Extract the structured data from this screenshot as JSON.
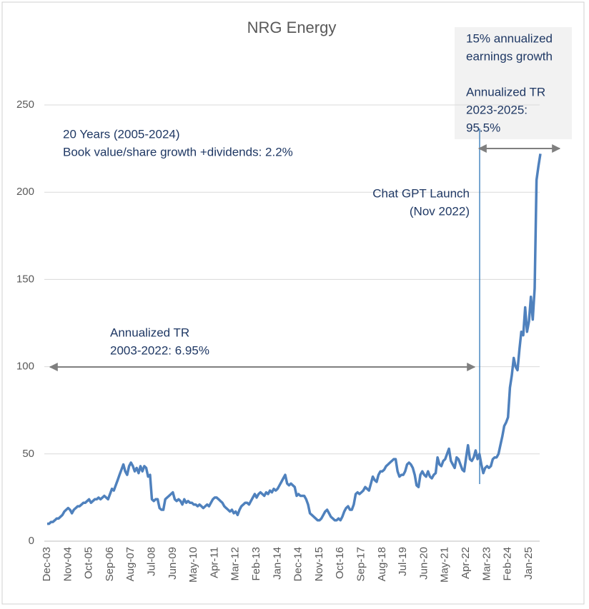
{
  "chart_data": {
    "type": "line",
    "title": "NRG Energy",
    "categories": [
      "Dec-03",
      null,
      null,
      null,
      null,
      null,
      null,
      null,
      null,
      null,
      null,
      "Nov-04",
      null,
      null,
      null,
      null,
      null,
      null,
      null,
      null,
      null,
      null,
      "Oct-05",
      null,
      null,
      null,
      null,
      null,
      null,
      null,
      null,
      null,
      null,
      "Sep-06",
      null,
      null,
      null,
      null,
      null,
      null,
      null,
      null,
      null,
      null,
      "Aug-07",
      null,
      null,
      null,
      null,
      null,
      null,
      null,
      null,
      null,
      null,
      "Jul-08",
      null,
      null,
      null,
      null,
      null,
      null,
      null,
      null,
      null,
      null,
      "Jun-09",
      null,
      null,
      null,
      null,
      null,
      null,
      null,
      null,
      null,
      null,
      "May-10",
      null,
      null,
      null,
      null,
      null,
      null,
      null,
      null,
      null,
      null,
      "Apr-11",
      null,
      null,
      null,
      null,
      null,
      null,
      null,
      null,
      null,
      null,
      "Mar-12",
      null,
      null,
      null,
      null,
      null,
      null,
      null,
      null,
      null,
      null,
      "Feb-13",
      null,
      null,
      null,
      null,
      null,
      null,
      null,
      null,
      null,
      null,
      "Jan-14",
      null,
      null,
      null,
      null,
      null,
      null,
      null,
      null,
      null,
      null,
      "Dec-14",
      null,
      null,
      null,
      null,
      null,
      null,
      null,
      null,
      null,
      null,
      "Nov-15",
      null,
      null,
      null,
      null,
      null,
      null,
      null,
      null,
      null,
      null,
      "Oct-16",
      null,
      null,
      null,
      null,
      null,
      null,
      null,
      null,
      null,
      null,
      "Sep-17",
      null,
      null,
      null,
      null,
      null,
      null,
      null,
      null,
      null,
      null,
      "Aug-18",
      null,
      null,
      null,
      null,
      null,
      null,
      null,
      null,
      null,
      null,
      "Jul-19",
      null,
      null,
      null,
      null,
      null,
      null,
      null,
      null,
      null,
      null,
      "Jun-20",
      null,
      null,
      null,
      null,
      null,
      null,
      null,
      null,
      null,
      null,
      "May-21",
      null,
      null,
      null,
      null,
      null,
      null,
      null,
      null,
      null,
      null,
      "Apr-22",
      null,
      null,
      null,
      null,
      null,
      null,
      null,
      null,
      null,
      null,
      "Mar-23",
      null,
      null,
      null,
      null,
      null,
      null,
      null,
      null,
      null,
      null,
      "Feb-24",
      null,
      null,
      null,
      null,
      null,
      null,
      null,
      null,
      null,
      null,
      "Jan-25",
      null,
      null,
      null,
      null,
      null,
      null
    ],
    "series": [
      {
        "color": "#4f81bd",
        "values": [
          10,
          10,
          11,
          11,
          12,
          13,
          13,
          14,
          15,
          17,
          18,
          19,
          18,
          16,
          18,
          19,
          20,
          20,
          21,
          22,
          22,
          23,
          24,
          22,
          23,
          24,
          24,
          25,
          24,
          25,
          26,
          25,
          24,
          27,
          30,
          29,
          32,
          35,
          38,
          41,
          44,
          40,
          38,
          43,
          45,
          43,
          40,
          42,
          39,
          43,
          40,
          43,
          42,
          37,
          38,
          24,
          23,
          24,
          24,
          19,
          18,
          18,
          24,
          25,
          26,
          27,
          28,
          24,
          23,
          24,
          23,
          21,
          24,
          22,
          23,
          22,
          22,
          21,
          21,
          20,
          21,
          20,
          19,
          20,
          21,
          20,
          22,
          24,
          25,
          25,
          24,
          23,
          22,
          20,
          19,
          18,
          17,
          18,
          16,
          17,
          15,
          18,
          20,
          21,
          22,
          22,
          21,
          23,
          25,
          27,
          25,
          27,
          28,
          27,
          26,
          28,
          27,
          29,
          28,
          30,
          29,
          30,
          32,
          34,
          36,
          38,
          33,
          32,
          33,
          32,
          31,
          26,
          27,
          26,
          26,
          26,
          24,
          21,
          16,
          15,
          14,
          13,
          12,
          12,
          13,
          15,
          17,
          18,
          16,
          14,
          13,
          12,
          12,
          13,
          12,
          14,
          17,
          19,
          20,
          18,
          18,
          21,
          27,
          28,
          27,
          28,
          29,
          31,
          30,
          29,
          33,
          37,
          35,
          34,
          38,
          40,
          40,
          41,
          43,
          44,
          45,
          46,
          47,
          47,
          40,
          37,
          38,
          38,
          40,
          44,
          45,
          44,
          42,
          38,
          32,
          31,
          38,
          40,
          38,
          37,
          40,
          37,
          36,
          38,
          39,
          48,
          44,
          43,
          46,
          47,
          50,
          53,
          46,
          44,
          42,
          48,
          47,
          44,
          41,
          40,
          48,
          55,
          47,
          46,
          48,
          52,
          47,
          50,
          44,
          39,
          42,
          43,
          42,
          43,
          47,
          48,
          48,
          50,
          55,
          60,
          66,
          68,
          71,
          88,
          95,
          105,
          100,
          98,
          110,
          120,
          118,
          134,
          120,
          126,
          140,
          127,
          145,
          207,
          215,
          222
        ]
      }
    ],
    "ylim": [
      0,
      250
    ],
    "yticks": [
      0,
      50,
      100,
      150,
      200,
      250
    ],
    "grid": true,
    "annotations": [
      "15% annualized",
      "earnings growth",
      "Annualized TR",
      "2023-2025:",
      "95.5%",
      "20 Years (2005-2024)",
      "Book value/share growth +dividends: 2.2%",
      "Chat GPT Launch",
      "(Nov 2022)",
      "Annualized TR",
      "2003-2022: 6.95%"
    ]
  }
}
